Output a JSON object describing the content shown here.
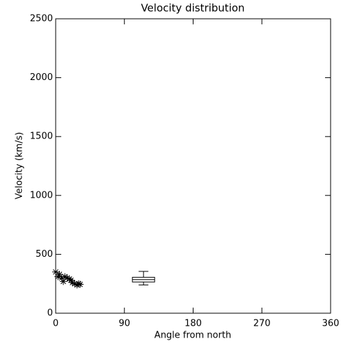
{
  "chart_data": {
    "type": "scatter",
    "title": "Velocity distribution",
    "x_label": "Angle from north",
    "y_label": "Velocity (km/s)",
    "x": [
      0,
      3,
      5,
      8,
      10,
      12,
      15,
      18,
      20,
      22,
      25,
      28,
      30,
      32
    ],
    "values": [
      350,
      310,
      330,
      300,
      270,
      310,
      300,
      290,
      280,
      260,
      250,
      240,
      250,
      245
    ],
    "color": "#000000",
    "box": {
      "x": 115,
      "min": 240,
      "q1": 265,
      "median": 285,
      "q3": 305,
      "max": 355
    },
    "xlim": [
      0,
      360
    ],
    "xticks": [
      0,
      90,
      180,
      270,
      360
    ],
    "ylim": [
      0,
      2500
    ],
    "yticks": [
      0,
      500,
      1000,
      1500,
      2000,
      2500
    ]
  }
}
